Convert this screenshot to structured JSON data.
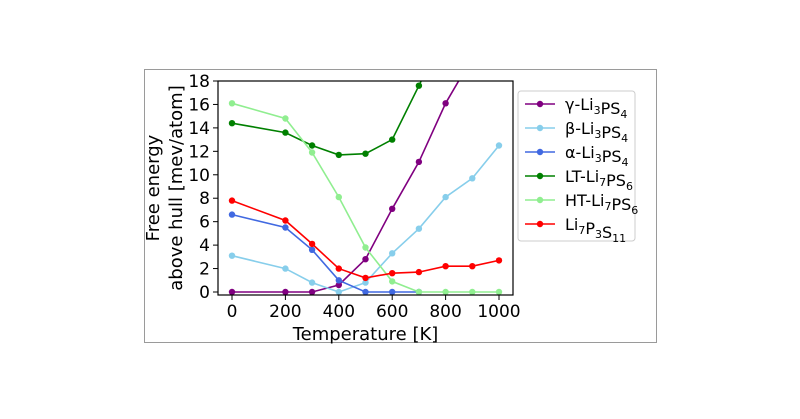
{
  "chart_data": {
    "type": "line",
    "xlabel": "Temperature [K]",
    "ylabel_lines": [
      "Free energy",
      "above hull [mev/atom]"
    ],
    "xlim": [
      0,
      1000
    ],
    "ylim": [
      0,
      18
    ],
    "xticks": [
      0,
      200,
      400,
      600,
      800,
      1000
    ],
    "yticks": [
      0,
      2,
      4,
      6,
      8,
      10,
      12,
      14,
      16,
      18
    ],
    "grid": false,
    "legend_position": "right",
    "series": [
      {
        "name": "γ-Li3PS4",
        "label_parts": [
          [
            "γ-Li",
            ""
          ],
          [
            "3",
            "sub"
          ],
          [
            "PS",
            ""
          ],
          [
            "4",
            "sub"
          ]
        ],
        "color": "#800080",
        "x": [
          0,
          200,
          300,
          400,
          500,
          600,
          700,
          800,
          900
        ],
        "y": [
          0.0,
          0.0,
          0.0,
          0.6,
          2.8,
          7.1,
          11.1,
          16.1,
          20.0
        ]
      },
      {
        "name": "β-Li3PS4",
        "label_parts": [
          [
            "β-Li",
            ""
          ],
          [
            "3",
            "sub"
          ],
          [
            "PS",
            ""
          ],
          [
            "4",
            "sub"
          ]
        ],
        "color": "#87ceeb",
        "x": [
          0,
          200,
          300,
          400,
          500,
          600,
          700,
          800,
          900,
          1000
        ],
        "y": [
          3.1,
          2.0,
          0.8,
          0.0,
          0.8,
          3.3,
          5.4,
          8.1,
          9.7,
          12.5
        ]
      },
      {
        "name": "α-Li3PS4",
        "label_parts": [
          [
            "α-Li",
            ""
          ],
          [
            "3",
            "sub"
          ],
          [
            "PS",
            ""
          ],
          [
            "4",
            "sub"
          ]
        ],
        "color": "#4169e1",
        "x": [
          0,
          200,
          300,
          400,
          500,
          600,
          700
        ],
        "y": [
          6.6,
          5.5,
          3.6,
          1.0,
          0.0,
          0.0,
          0.0
        ]
      },
      {
        "name": "LT-Li7PS6",
        "label_parts": [
          [
            "LT-Li",
            ""
          ],
          [
            "7",
            "sub"
          ],
          [
            "PS",
            ""
          ],
          [
            "6",
            "sub"
          ]
        ],
        "color": "#008000",
        "x": [
          0,
          200,
          300,
          400,
          500,
          600,
          700,
          750
        ],
        "y": [
          14.4,
          13.6,
          12.5,
          11.7,
          11.8,
          13.0,
          17.6,
          20.0
        ]
      },
      {
        "name": "HT-Li7PS6",
        "label_parts": [
          [
            "HT-Li",
            ""
          ],
          [
            "7",
            "sub"
          ],
          [
            "PS",
            ""
          ],
          [
            "6",
            "sub"
          ]
        ],
        "color": "#90ee90",
        "x": [
          0,
          200,
          300,
          400,
          500,
          600,
          700,
          800,
          900,
          1000
        ],
        "y": [
          16.1,
          14.8,
          11.9,
          8.1,
          3.8,
          0.9,
          0.0,
          0.0,
          0.0,
          0.0
        ]
      },
      {
        "name": "Li7P3S11",
        "label_parts": [
          [
            "Li",
            ""
          ],
          [
            "7",
            "sub"
          ],
          [
            "P",
            ""
          ],
          [
            "3",
            "sub"
          ],
          [
            "S",
            ""
          ],
          [
            "11",
            "sub"
          ]
        ],
        "color": "#ff0000",
        "x": [
          0,
          200,
          300,
          400,
          500,
          600,
          700,
          800,
          900,
          1000
        ],
        "y": [
          7.8,
          6.1,
          4.1,
          2.0,
          1.2,
          1.6,
          1.7,
          2.2,
          2.2,
          2.7
        ]
      }
    ]
  }
}
